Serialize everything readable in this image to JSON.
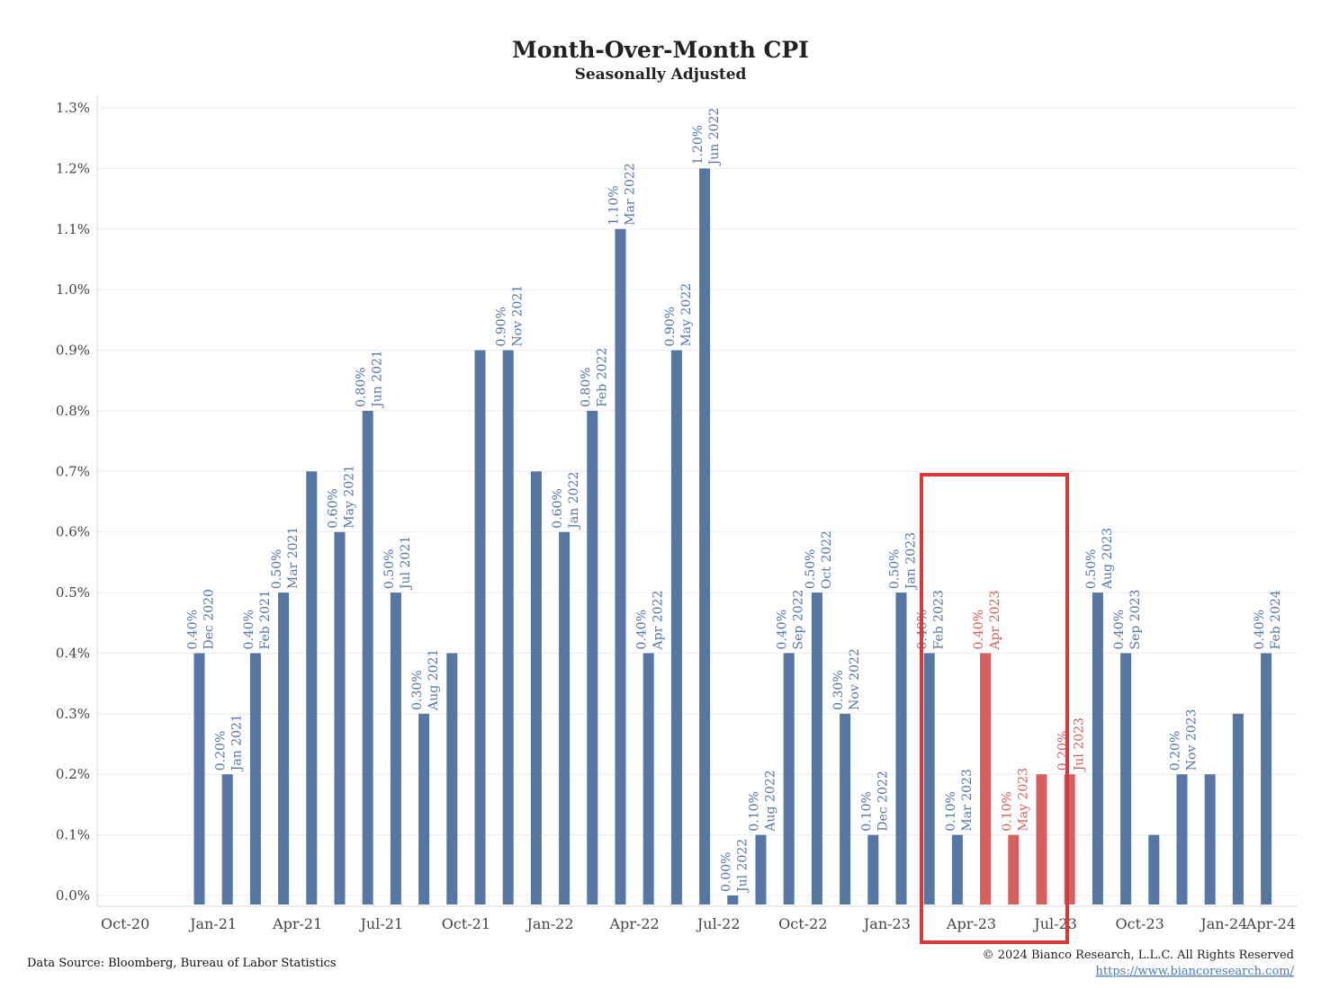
{
  "chart_data": {
    "type": "bar",
    "title": "Month-Over-Month CPI",
    "subtitle": "Seasonally Adjusted",
    "ylim": [
      0.0,
      1.3
    ],
    "yticks": [
      "0.0%",
      "0.1%",
      "0.2%",
      "0.3%",
      "0.4%",
      "0.5%",
      "0.6%",
      "0.7%",
      "0.8%",
      "0.9%",
      "1.0%",
      "1.1%",
      "1.2%",
      "1.3%"
    ],
    "xticks": [
      "Oct-20",
      "Jan-21",
      "Apr-21",
      "Jul-21",
      "Oct-21",
      "Jan-22",
      "Apr-22",
      "Jul-22",
      "Oct-22",
      "Jan-23",
      "Apr-23",
      "Jul-23",
      "Oct-23",
      "Jan-24",
      "Apr-24"
    ],
    "grid": true,
    "colors": {
      "default": "#5677a3",
      "highlight": "#d65f5f",
      "highlight_box": "#d93838",
      "label_default": "#5677a3",
      "label_highlight": "#d65f5f"
    },
    "highlight_range": [
      "Apr 2023",
      "Jul 2023"
    ],
    "bars": [
      {
        "month": "Dec 2020",
        "value": 0.4,
        "label": "0.40%"
      },
      {
        "month": "Jan 2021",
        "value": 0.2,
        "label": "0.20%"
      },
      {
        "month": "Feb 2021",
        "value": 0.4,
        "label": "0.40%"
      },
      {
        "month": "Mar 2021",
        "value": 0.5,
        "label": "0.50%"
      },
      {
        "month": "Apr 2021",
        "value": 0.7
      },
      {
        "month": "May 2021",
        "value": 0.6,
        "label": "0.60%"
      },
      {
        "month": "Jun 2021",
        "value": 0.8,
        "label": "0.80%"
      },
      {
        "month": "Jul 2021",
        "value": 0.5,
        "label": "0.50%"
      },
      {
        "month": "Aug 2021",
        "value": 0.3,
        "label": "0.30%"
      },
      {
        "month": "Sep 2021",
        "value": 0.4
      },
      {
        "month": "Oct 2021",
        "value": 0.9
      },
      {
        "month": "Nov 2021",
        "value": 0.9,
        "label": "0.90%"
      },
      {
        "month": "Dec 2021",
        "value": 0.7
      },
      {
        "month": "Jan 2022",
        "value": 0.6,
        "label": "0.60%"
      },
      {
        "month": "Feb 2022",
        "value": 0.8,
        "label": "0.80%"
      },
      {
        "month": "Mar 2022",
        "value": 1.1,
        "label": "1.10%"
      },
      {
        "month": "Apr 2022",
        "value": 0.4,
        "label": "0.40%"
      },
      {
        "month": "May 2022",
        "value": 0.9,
        "label": "0.90%"
      },
      {
        "month": "Jun 2022",
        "value": 1.2,
        "label": "1.20%"
      },
      {
        "month": "Jul 2022",
        "value": 0.0,
        "label": "0.00%"
      },
      {
        "month": "Aug 2022",
        "value": 0.1,
        "label": "0.10%"
      },
      {
        "month": "Sep 2022",
        "value": 0.4,
        "label": "0.40%"
      },
      {
        "month": "Oct 2022",
        "value": 0.5,
        "label": "0.50%"
      },
      {
        "month": "Nov 2022",
        "value": 0.3,
        "label": "0.30%"
      },
      {
        "month": "Dec 2022",
        "value": 0.1,
        "label": "0.10%"
      },
      {
        "month": "Jan 2023",
        "value": 0.5,
        "label": "0.50%"
      },
      {
        "month": "Feb 2023",
        "value": 0.4,
        "label": "0.40%"
      },
      {
        "month": "Mar 2023",
        "value": 0.1,
        "label": "0.10%"
      },
      {
        "month": "Apr 2023",
        "value": 0.4,
        "label": "0.40%",
        "highlight": true
      },
      {
        "month": "May 2023",
        "value": 0.1,
        "label": "0.10%",
        "highlight": true
      },
      {
        "month": "Jun 2023",
        "value": 0.2,
        "highlight": true
      },
      {
        "month": "Jul 2023",
        "value": 0.2,
        "label": "0.20%",
        "highlight": true
      },
      {
        "month": "Aug 2023",
        "value": 0.5,
        "label": "0.50%"
      },
      {
        "month": "Sep 2023",
        "value": 0.4,
        "label": "0.40%"
      },
      {
        "month": "Oct 2023",
        "value": 0.1
      },
      {
        "month": "Nov 2023",
        "value": 0.2,
        "label": "0.20%"
      },
      {
        "month": "Dec 2023",
        "value": 0.2
      },
      {
        "month": "Jan 2024",
        "value": 0.3
      },
      {
        "month": "Feb 2024",
        "value": 0.4,
        "label": "0.40%"
      }
    ]
  },
  "footer": {
    "source": "Data Source: Bloomberg, Bureau of Labor Statistics",
    "copyright": "© 2024 Bianco Research, L.L.C. All Rights Reserved",
    "url": "https://www.biancoresearch.com/"
  }
}
